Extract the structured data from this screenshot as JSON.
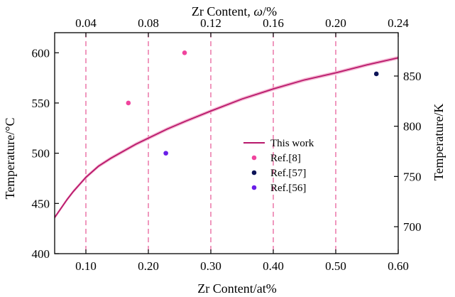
{
  "chart_data": {
    "type": "line",
    "title": "",
    "xlabel_bottom": "Zr Content/at%",
    "xlabel_top_prefix": "Zr Content, ",
    "xlabel_top_symbol": "ω",
    "xlabel_top_suffix": "/%",
    "ylabel_left": "Temperature/°C",
    "ylabel_right": "Temperature/K",
    "xlim": [
      0.05,
      0.6
    ],
    "ylim": [
      400,
      620
    ],
    "x_ticks": [
      0.1,
      0.2,
      0.3,
      0.4,
      0.5,
      0.6
    ],
    "x_tick_labels": [
      "0.10",
      "0.20",
      "0.30",
      "0.40",
      "0.50",
      "0.60"
    ],
    "y_ticks": [
      400,
      450,
      500,
      550,
      600
    ],
    "y_tick_labels": [
      "400",
      "450",
      "500",
      "550",
      "600"
    ],
    "top_ticks_x": [
      0.1,
      0.2,
      0.3,
      0.4,
      0.5,
      0.6
    ],
    "top_tick_labels": [
      "0.04",
      "0.08",
      "0.12",
      "0.16",
      "0.20",
      "0.24"
    ],
    "right_ticks_y": [
      426.85,
      476.85,
      526.85,
      576.85
    ],
    "right_tick_labels": [
      "700",
      "750",
      "800",
      "850"
    ],
    "dashed_vlines_x": [
      0.1,
      0.2,
      0.3,
      0.4,
      0.5
    ],
    "legend_position": "center-right",
    "series": [
      {
        "name": "This work",
        "kind": "line",
        "color": "#b8186b",
        "band_color": "#f2a6c8",
        "x": [
          0.05,
          0.06,
          0.07,
          0.08,
          0.09,
          0.1,
          0.12,
          0.14,
          0.16,
          0.18,
          0.2,
          0.23,
          0.26,
          0.3,
          0.35,
          0.4,
          0.45,
          0.5,
          0.55,
          0.6
        ],
        "y": [
          436,
          445,
          454,
          462,
          469,
          476,
          487,
          495,
          502,
          509,
          515,
          524,
          532,
          542,
          554,
          564,
          573,
          580,
          588,
          595
        ]
      },
      {
        "name": "Ref.[8]",
        "kind": "scatter",
        "color": "#f0449d",
        "x": [
          0.168,
          0.258
        ],
        "y": [
          550,
          600
        ]
      },
      {
        "name": "Ref.[57]",
        "kind": "scatter",
        "color": "#0d1458",
        "x": [
          0.565
        ],
        "y": [
          579
        ]
      },
      {
        "name": "Ref.[56]",
        "kind": "scatter",
        "color": "#6a1ee8",
        "x": [
          0.228
        ],
        "y": [
          500
        ]
      }
    ],
    "colors": {
      "dashed_line": "#e8609c",
      "axis": "#000000"
    }
  }
}
